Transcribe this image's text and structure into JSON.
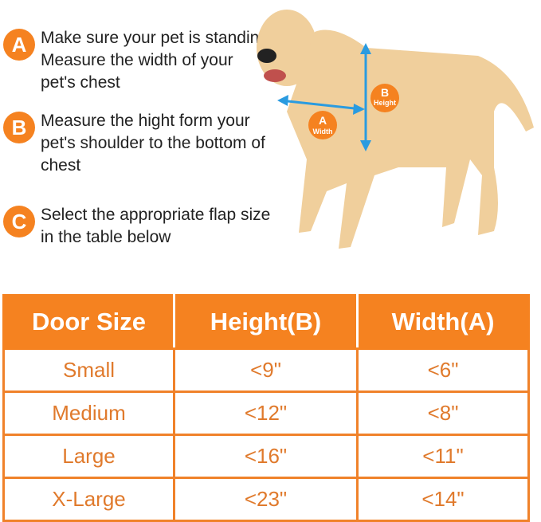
{
  "steps": [
    {
      "letter": "A",
      "text": "Make sure your pet is standing Measure the width of your pet's chest"
    },
    {
      "letter": "B",
      "text": "Measure the hight form your pet's shoulder to the bottom of chest"
    },
    {
      "letter": "C",
      "text": "Select the appropriate flap size in the table below"
    }
  ],
  "diagram": {
    "a_letter": "A",
    "a_label": "Width",
    "b_letter": "B",
    "b_label": "Height"
  },
  "colors": {
    "accent": "#f58220",
    "arrow": "#2a9be0"
  },
  "table": {
    "headers": [
      "Door Size",
      "Height(B)",
      "Width(A)"
    ],
    "rows": [
      [
        "Small",
        "<9\"",
        "<6\""
      ],
      [
        "Medium",
        "<12\"",
        "<8\""
      ],
      [
        "Large",
        "<16\"",
        "<11\""
      ],
      [
        "X-Large",
        "<23\"",
        "<14\""
      ]
    ]
  }
}
